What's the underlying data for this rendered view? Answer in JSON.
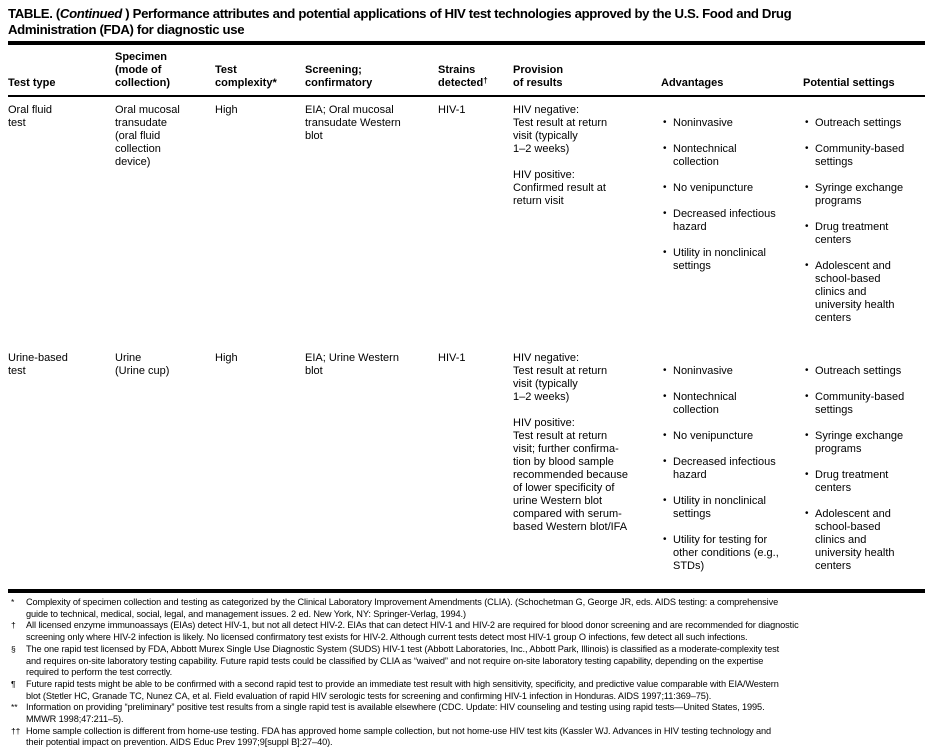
{
  "title": {
    "prefix": "TABLE. (",
    "continued": "Continued",
    "line1_rest": " ) Performance attributes and potential applications of HIV test technologies approved by the U.S. Food and Drug",
    "line2": "Administration (FDA) for diagnostic use"
  },
  "table": {
    "columns": [
      {
        "label": "Test type"
      },
      {
        "label": "Specimen\n(mode of\ncollection)"
      },
      {
        "label": "Test\ncomplexity*"
      },
      {
        "label": "Screening;\nconfirmatory"
      },
      {
        "label": "Strains\ndetected",
        "sup": "†"
      },
      {
        "label": "Provision\nof results"
      },
      {
        "label": "Advantages"
      },
      {
        "label": "Potential settings"
      }
    ],
    "rows": [
      {
        "test_type": "Oral fluid\ntest",
        "specimen": "Oral mucosal\ntransudate\n(oral fluid\ncollection\ndevice)",
        "complexity": "High",
        "screening": "EIA; Oral mucosal\ntransudate Western\nblot",
        "strains": "HIV-1",
        "provision": "HIV negative:\nTest result at return\nvisit (typically\n1–2 weeks)\n\nHIV positive:\nConfirmed result at\nreturn visit",
        "advantages": [
          "Noninvasive",
          "Nontechnical\ncollection",
          "No venipuncture",
          "Decreased infectious\nhazard",
          "Utility in nonclinical\nsettings"
        ],
        "settings": [
          "Outreach settings",
          "Community-based\nsettings",
          "Syringe exchange\nprograms",
          "Drug treatment\ncenters",
          "Adolescent and\nschool-based\nclinics and\nuniversity health\ncenters"
        ]
      },
      {
        "test_type": "Urine-based\ntest",
        "specimen": "Urine\n(Urine cup)",
        "complexity": "High",
        "screening": "EIA; Urine Western\nblot",
        "strains": "HIV-1",
        "provision": "HIV negative:\nTest result at return\nvisit (typically\n1–2 weeks)\n\nHIV positive:\nTest result at return\nvisit; further confirma-\ntion by blood sample\nrecommended because\nof lower specificity of\nurine Western blot\ncompared with serum-\nbased Western blot/IFA",
        "advantages": [
          "Noninvasive",
          "Nontechnical\ncollection",
          "No venipuncture",
          "Decreased infectious\nhazard",
          "Utility in nonclinical\nsettings",
          "Utility for testing for\nother conditions (e.g.,\nSTDs)"
        ],
        "settings": [
          "Outreach settings",
          "Community-based\nsettings",
          "Syringe exchange\nprograms",
          "Drug treatment\ncenters",
          "Adolescent and\nschool-based\nclinics and\nuniversity health\ncenters"
        ]
      }
    ]
  },
  "footnotes": [
    {
      "marker": "*",
      "text": "Complexity of specimen collection and testing as categorized by the Clinical Laboratory Improvement Amendments (CLIA). (Schochetman G, George JR, eds. AIDS testing: a comprehensive\nguide to technical, medical, social, legal, and management issues. 2 ed. New York, NY: Springer-Verlag, 1994.)"
    },
    {
      "marker": "†",
      "text": "All licensed enzyme immunoassays (EIAs) detect HIV-1, but not all detect HIV-2. EIAs that can detect HIV-1 and HIV-2 are required for blood donor screening and are recommended for diagnostic\nscreening only where HIV-2 infection is likely. No licensed confirmatory test exists for HIV-2. Although current tests detect most HIV-1 group O infections, few detect all such infections."
    },
    {
      "marker": "§",
      "text": "The one rapid test licensed by FDA, Abbott Murex Single Use Diagnostic System (SUDS) HIV-1 test (Abbott Laboratories, Inc., Abbott Park, Illinois) is classified as a moderate-complexity test\nand requires on-site laboratory testing capability. Future rapid tests could be classified by CLIA as “waived” and not require on-site laboratory testing capability, depending on the expertise\nrequired to perform the test correctly."
    },
    {
      "marker": "¶",
      "text": "Future rapid tests might be able to be confirmed with a second rapid test to provide an immediate test result with high sensitivity, specificity, and predictive value comparable with EIA/Western\nblot (Stetler HC, Granade TC, Nunez CA, et al. Field evaluation of rapid HIV serologic tests for screening and confirming HIV-1 infection in Honduras. AIDS 1997;11:369–75)."
    },
    {
      "marker": "**",
      "text": "Information on providing “preliminary” positive test results from a single rapid test is available elsewhere (CDC. Update: HIV counseling and testing using rapid tests—United States, 1995.\nMMWR 1998;47:211–5)."
    },
    {
      "marker": "††",
      "text": "Home sample collection is different from home-use testing. FDA has approved home sample collection, but not home-use HIV test kits (Kassler WJ. Advances in HIV testing technology and\ntheir potential impact on prevention. AIDS Educ Prev 1997;9[suppl B]:27–40)."
    }
  ]
}
